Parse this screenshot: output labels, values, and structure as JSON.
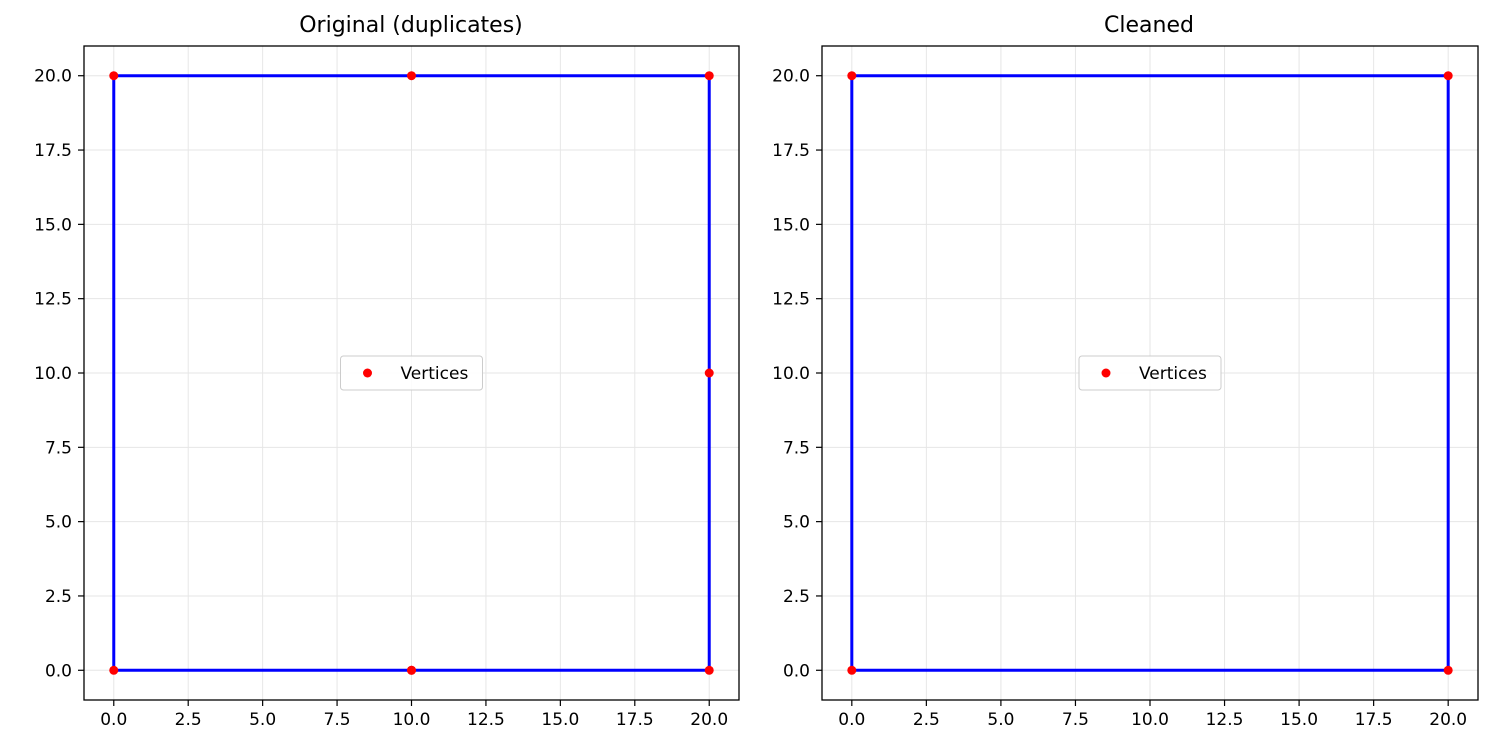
{
  "colors": {
    "outline": "#0000ff",
    "vertex": "#ff0000",
    "grid": "#e6e6e6",
    "axes": "#000000",
    "legend_border": "#cccccc"
  },
  "chart_data": [
    {
      "type": "line",
      "title": "Original (duplicates)",
      "xlabel": "",
      "ylabel": "",
      "xlim": [
        -1,
        21
      ],
      "ylim": [
        -1,
        21
      ],
      "xticks": [
        0.0,
        2.5,
        5.0,
        7.5,
        10.0,
        12.5,
        15.0,
        17.5,
        20.0
      ],
      "yticks": [
        0.0,
        2.5,
        5.0,
        7.5,
        10.0,
        12.5,
        15.0,
        17.5,
        20.0
      ],
      "xtick_labels": [
        "0.0",
        "2.5",
        "5.0",
        "7.5",
        "10.0",
        "12.5",
        "15.0",
        "17.5",
        "20.0"
      ],
      "ytick_labels": [
        "0.0",
        "2.5",
        "5.0",
        "7.5",
        "10.0",
        "12.5",
        "15.0",
        "17.5",
        "20.0"
      ],
      "grid": true,
      "legend_position": "center",
      "legend": [
        "Vertices"
      ],
      "outline": [
        [
          0,
          0
        ],
        [
          10,
          0
        ],
        [
          10,
          0
        ],
        [
          20,
          0
        ],
        [
          20,
          10
        ],
        [
          20,
          20
        ],
        [
          10,
          20
        ],
        [
          0,
          20
        ],
        [
          0,
          0
        ]
      ],
      "vertices": [
        [
          0,
          0
        ],
        [
          10,
          0
        ],
        [
          10,
          0
        ],
        [
          20,
          0
        ],
        [
          20,
          10
        ],
        [
          20,
          20
        ],
        [
          10,
          20
        ],
        [
          0,
          20
        ]
      ]
    },
    {
      "type": "line",
      "title": "Cleaned",
      "xlabel": "",
      "ylabel": "",
      "xlim": [
        -1,
        21
      ],
      "ylim": [
        -1,
        21
      ],
      "xticks": [
        0.0,
        2.5,
        5.0,
        7.5,
        10.0,
        12.5,
        15.0,
        17.5,
        20.0
      ],
      "yticks": [
        0.0,
        2.5,
        5.0,
        7.5,
        10.0,
        12.5,
        15.0,
        17.5,
        20.0
      ],
      "xtick_labels": [
        "0.0",
        "2.5",
        "5.0",
        "7.5",
        "10.0",
        "12.5",
        "15.0",
        "17.5",
        "20.0"
      ],
      "ytick_labels": [
        "0.0",
        "2.5",
        "5.0",
        "7.5",
        "10.0",
        "12.5",
        "15.0",
        "17.5",
        "20.0"
      ],
      "grid": true,
      "legend_position": "center",
      "legend": [
        "Vertices"
      ],
      "outline": [
        [
          0,
          0
        ],
        [
          20,
          0
        ],
        [
          20,
          20
        ],
        [
          0,
          20
        ],
        [
          0,
          0
        ]
      ],
      "vertices": [
        [
          0,
          0
        ],
        [
          20,
          0
        ],
        [
          20,
          20
        ],
        [
          0,
          20
        ]
      ]
    }
  ]
}
